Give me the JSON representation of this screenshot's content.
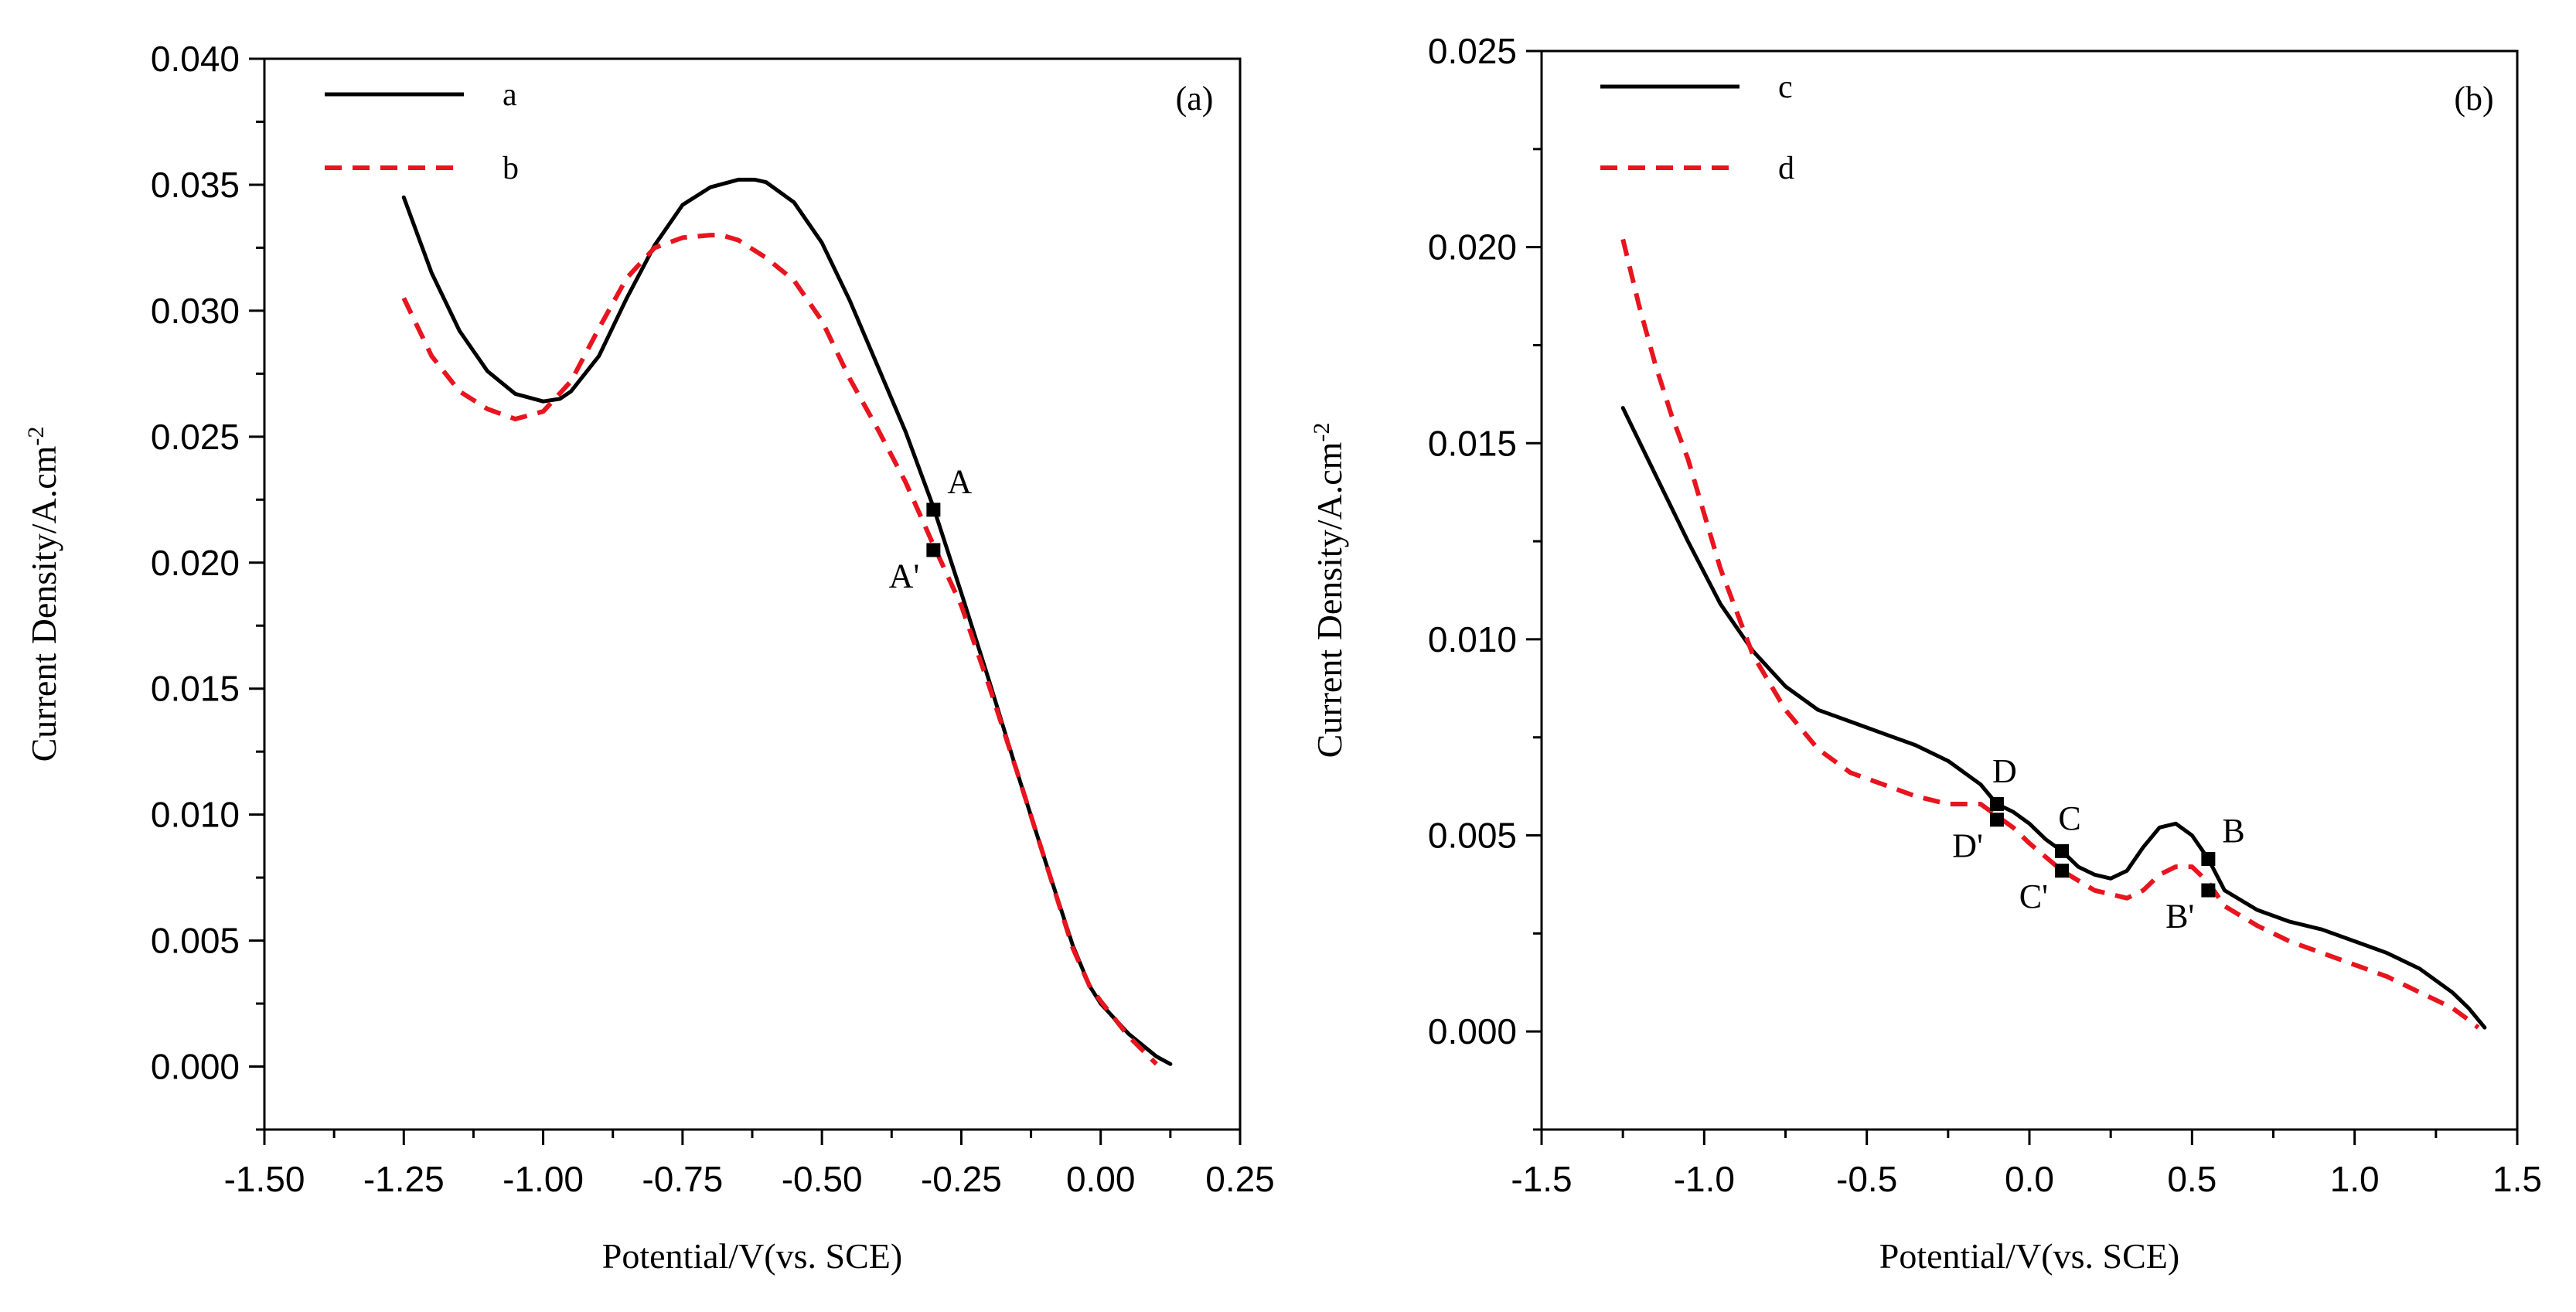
{
  "chart_data": [
    {
      "panel": "(a)",
      "type": "line",
      "xlabel": "Potential/V(vs. SCE)",
      "ylabel": "Current Density/A.cm",
      "ylabel_sup": "-2",
      "xlim": [
        -1.5,
        0.25
      ],
      "ylim": [
        -0.0025,
        0.04
      ],
      "xticks": [
        -1.5,
        -1.25,
        -1.0,
        -0.75,
        -0.5,
        -0.25,
        0.0,
        0.25
      ],
      "xtick_labels": [
        "-1.50",
        "-1.25",
        "-1.00",
        "-0.75",
        "-0.50",
        "-0.25",
        "0.00",
        "0.25"
      ],
      "yticks": [
        0.0,
        0.005,
        0.01,
        0.015,
        0.02,
        0.025,
        0.03,
        0.035,
        0.04
      ],
      "ytick_labels": [
        "0.000",
        "0.005",
        "0.010",
        "0.015",
        "0.020",
        "0.025",
        "0.030",
        "0.035",
        "0.040"
      ],
      "legend_position": "top-left",
      "series": [
        {
          "name": "a",
          "color": "#000000",
          "dashed": false,
          "x": [
            -1.25,
            -1.2,
            -1.15,
            -1.1,
            -1.05,
            -1.0,
            -0.97,
            -0.95,
            -0.9,
            -0.85,
            -0.8,
            -0.75,
            -0.7,
            -0.65,
            -0.62,
            -0.6,
            -0.55,
            -0.5,
            -0.45,
            -0.4,
            -0.35,
            -0.3,
            -0.25,
            -0.2,
            -0.15,
            -0.1,
            -0.05,
            -0.02,
            0.0,
            0.05,
            0.1,
            0.125
          ],
          "y": [
            0.0345,
            0.0315,
            0.0292,
            0.0276,
            0.0267,
            0.0264,
            0.0265,
            0.0268,
            0.0282,
            0.0305,
            0.0326,
            0.0342,
            0.0349,
            0.0352,
            0.0352,
            0.0351,
            0.0343,
            0.0327,
            0.0304,
            0.0278,
            0.0252,
            0.0222,
            0.0188,
            0.0153,
            0.0117,
            0.0082,
            0.0048,
            0.0032,
            0.0025,
            0.0013,
            0.0004,
            0.0001
          ]
        },
        {
          "name": "b",
          "color": "#e8141e",
          "dashed": true,
          "x": [
            -1.25,
            -1.2,
            -1.15,
            -1.1,
            -1.05,
            -1.0,
            -0.95,
            -0.9,
            -0.85,
            -0.8,
            -0.75,
            -0.7,
            -0.68,
            -0.65,
            -0.6,
            -0.55,
            -0.5,
            -0.45,
            -0.4,
            -0.35,
            -0.3,
            -0.25,
            -0.2,
            -0.15,
            -0.1,
            -0.05,
            -0.02,
            0.0,
            0.05,
            0.1
          ],
          "y": [
            0.0305,
            0.0282,
            0.0268,
            0.0261,
            0.0257,
            0.026,
            0.0272,
            0.0293,
            0.0313,
            0.0325,
            0.0329,
            0.033,
            0.033,
            0.0328,
            0.0321,
            0.0312,
            0.0296,
            0.0273,
            0.0253,
            0.0232,
            0.0207,
            0.0183,
            0.0151,
            0.0117,
            0.0082,
            0.0047,
            0.0032,
            0.0026,
            0.0012,
            0.0001
          ]
        }
      ],
      "markers": [
        {
          "label": "A",
          "x": -0.3,
          "y": 0.0221,
          "label_side": "right-up"
        },
        {
          "label": "A'",
          "x": -0.3,
          "y": 0.0205,
          "label_side": "left-down"
        }
      ]
    },
    {
      "panel": "(b)",
      "type": "line",
      "xlabel": "Potential/V(vs. SCE)",
      "ylabel": "Current Density/A.cm",
      "ylabel_sup": "-2",
      "xlim": [
        -1.5,
        1.5
      ],
      "ylim": [
        -0.0025,
        0.025
      ],
      "xticks": [
        -1.5,
        -1.0,
        -0.5,
        0.0,
        0.5,
        1.0,
        1.5
      ],
      "xtick_labels": [
        "-1.5",
        "-1.0",
        "-0.5",
        "0.0",
        "0.5",
        "1.0",
        "1.5"
      ],
      "yticks": [
        0.0,
        0.005,
        0.01,
        0.015,
        0.02,
        0.025
      ],
      "ytick_labels": [
        "0.000",
        "0.005",
        "0.010",
        "0.015",
        "0.020",
        "0.025"
      ],
      "legend_position": "top-left",
      "series": [
        {
          "name": "c",
          "color": "#000000",
          "dashed": false,
          "x": [
            -1.25,
            -1.15,
            -1.05,
            -0.95,
            -0.85,
            -0.75,
            -0.65,
            -0.55,
            -0.45,
            -0.35,
            -0.25,
            -0.15,
            -0.1,
            -0.05,
            0.0,
            0.05,
            0.1,
            0.15,
            0.2,
            0.25,
            0.3,
            0.35,
            0.4,
            0.45,
            0.5,
            0.55,
            0.6,
            0.7,
            0.8,
            0.9,
            1.0,
            1.1,
            1.2,
            1.3,
            1.35,
            1.4
          ],
          "y": [
            0.0159,
            0.0142,
            0.0125,
            0.0109,
            0.0097,
            0.0088,
            0.0082,
            0.0079,
            0.0076,
            0.0073,
            0.0069,
            0.0063,
            0.0058,
            0.0056,
            0.0053,
            0.0049,
            0.0046,
            0.0042,
            0.004,
            0.0039,
            0.0041,
            0.0047,
            0.0052,
            0.0053,
            0.005,
            0.0044,
            0.0036,
            0.0031,
            0.0028,
            0.0026,
            0.0023,
            0.002,
            0.0016,
            0.001,
            0.0006,
            0.0001
          ]
        },
        {
          "name": "d",
          "color": "#e8141e",
          "dashed": true,
          "x": [
            -1.25,
            -1.2,
            -1.15,
            -1.1,
            -1.05,
            -1.0,
            -0.95,
            -0.85,
            -0.75,
            -0.65,
            -0.55,
            -0.45,
            -0.35,
            -0.25,
            -0.15,
            -0.1,
            -0.05,
            0.0,
            0.1,
            0.2,
            0.3,
            0.35,
            0.4,
            0.45,
            0.5,
            0.55,
            0.6,
            0.7,
            0.8,
            0.9,
            1.0,
            1.1,
            1.2,
            1.3,
            1.35,
            1.38
          ],
          "y": [
            0.0202,
            0.0185,
            0.017,
            0.0157,
            0.0146,
            0.0132,
            0.0118,
            0.0096,
            0.0082,
            0.0072,
            0.0066,
            0.0063,
            0.006,
            0.0058,
            0.0058,
            0.0055,
            0.0052,
            0.0048,
            0.0041,
            0.0036,
            0.0034,
            0.0036,
            0.004,
            0.0042,
            0.0042,
            0.0038,
            0.0032,
            0.0027,
            0.0023,
            0.002,
            0.0017,
            0.0014,
            0.001,
            0.0006,
            0.0003,
            0.0001
          ]
        }
      ],
      "markers": [
        {
          "label": "D",
          "x": -0.1,
          "y": 0.0058,
          "label_side": "up"
        },
        {
          "label": "D'",
          "x": -0.1,
          "y": 0.0054,
          "label_side": "left-down"
        },
        {
          "label": "C",
          "x": 0.1,
          "y": 0.0046,
          "label_side": "up"
        },
        {
          "label": "C'",
          "x": 0.1,
          "y": 0.0041,
          "label_side": "left-down"
        },
        {
          "label": "B",
          "x": 0.55,
          "y": 0.0044,
          "label_side": "right-up"
        },
        {
          "label": "B'",
          "x": 0.55,
          "y": 0.0036,
          "label_side": "left-down"
        }
      ]
    }
  ]
}
